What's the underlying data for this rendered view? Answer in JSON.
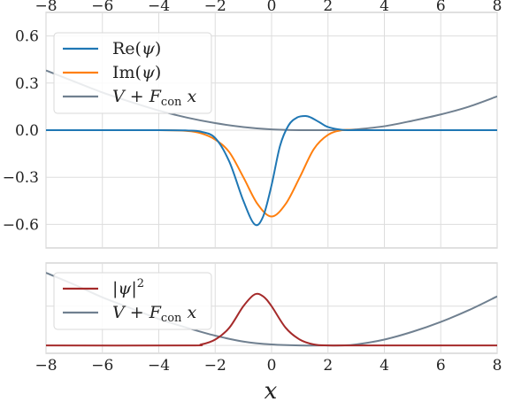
{
  "chart_data": [
    {
      "type": "line",
      "title": "",
      "xlabel": "",
      "ylabel": "",
      "xlim": [
        -8,
        8
      ],
      "ylim": [
        -0.75,
        0.75
      ],
      "x_ticks": [
        "−8",
        "−6",
        "−4",
        "−2",
        "0",
        "2",
        "4",
        "6",
        "8"
      ],
      "x_ticks_top": [
        "−8",
        "−6",
        "−4",
        "−2",
        "0",
        "2",
        "4",
        "6",
        "8"
      ],
      "y_ticks": [
        "0.6",
        "0.3",
        "0.0",
        "−0.3",
        "−0.6"
      ],
      "y_tick_values": [
        0.6,
        0.3,
        0.0,
        -0.3,
        -0.6
      ],
      "grid": true,
      "legend_position": "top-left",
      "legend": [
        "Re(ψ)",
        "Im(ψ)",
        "V + F_con x"
      ],
      "series": [
        {
          "name": "Re(ψ)",
          "color": "#1f77b4",
          "x": [
            -8,
            -4,
            -3,
            -2.5,
            -2,
            -1.5,
            -1,
            -0.6,
            -0.3,
            0,
            0.3,
            0.6,
            0.9,
            1.2,
            1.4,
            1.7,
            2,
            2.5,
            3,
            4,
            8
          ],
          "y": [
            0,
            0,
            -0.002,
            -0.01,
            -0.05,
            -0.2,
            -0.45,
            -0.6,
            -0.55,
            -0.35,
            -0.1,
            0.03,
            0.08,
            0.09,
            0.08,
            0.05,
            0.02,
            0.002,
            0,
            0,
            0
          ]
        },
        {
          "name": "Im(ψ)",
          "color": "#ff7f0e",
          "x": [
            -8,
            -4,
            -3,
            -2.5,
            -2,
            -1.5,
            -1,
            -0.5,
            0,
            0.5,
            1,
            1.5,
            2,
            2.5,
            3,
            4,
            8
          ],
          "y": [
            0,
            0,
            -0.005,
            -0.02,
            -0.06,
            -0.14,
            -0.3,
            -0.47,
            -0.55,
            -0.47,
            -0.3,
            -0.12,
            -0.03,
            0,
            0,
            0,
            0
          ]
        },
        {
          "name": "V + F_con x",
          "color": "#708090",
          "x": [
            -8,
            -7,
            -6,
            -5,
            -4,
            -3,
            -2,
            -1,
            0,
            1,
            2,
            2.5,
            3,
            4,
            5,
            6,
            7,
            8
          ],
          "y": [
            0.38,
            0.31,
            0.24,
            0.18,
            0.125,
            0.08,
            0.045,
            0.02,
            0.005,
            0,
            0,
            0,
            0.005,
            0.025,
            0.06,
            0.1,
            0.15,
            0.215
          ]
        }
      ]
    },
    {
      "type": "line",
      "title": "",
      "xlabel": "x",
      "ylabel": "",
      "xlim": [
        -8,
        8
      ],
      "ylim": [
        -0.04,
        0.42
      ],
      "x_ticks": [
        "−8",
        "−6",
        "−4",
        "−2",
        "0",
        "2",
        "4",
        "6",
        "8"
      ],
      "grid": true,
      "legend_position": "top-left",
      "legend": [
        "|ψ|²",
        "V + F_con x"
      ],
      "series": [
        {
          "name": "|ψ|²",
          "color": "#a52a2a",
          "x": [
            -8,
            -3,
            -2.5,
            -2,
            -1.5,
            -1,
            -0.6,
            -0.3,
            0,
            0.5,
            1,
            1.5,
            2,
            3,
            8
          ],
          "y": [
            0,
            0,
            0.005,
            0.03,
            0.09,
            0.2,
            0.26,
            0.25,
            0.2,
            0.09,
            0.03,
            0.005,
            0,
            0,
            0
          ]
        },
        {
          "name": "V + F_con x",
          "color": "#708090",
          "x": [
            -8,
            -7,
            -6,
            -5,
            -4,
            -3,
            -2,
            -1,
            0,
            1,
            2,
            2.5,
            3,
            4,
            5,
            6,
            7,
            8
          ],
          "y": [
            0.37,
            0.31,
            0.245,
            0.19,
            0.135,
            0.09,
            0.05,
            0.02,
            0.005,
            0,
            0,
            0,
            0.005,
            0.03,
            0.07,
            0.12,
            0.18,
            0.25
          ]
        }
      ]
    }
  ]
}
